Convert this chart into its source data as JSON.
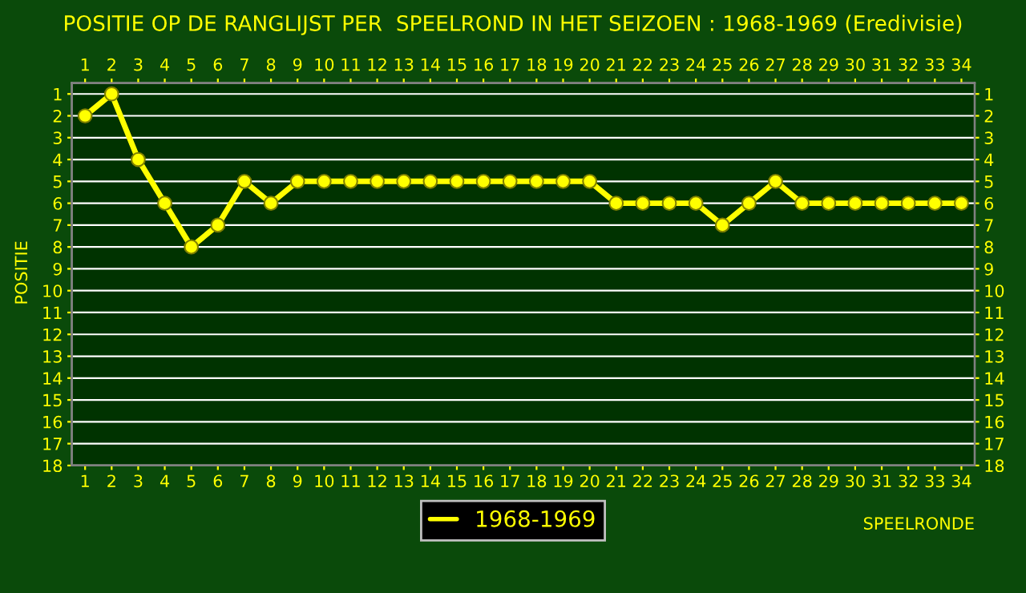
{
  "chart_data": {
    "type": "line",
    "title": "POSITIE OP DE RANGLIJST PER  SPEELROND IN HET SEIZOEN : 1968-1969 (Eredivisie)",
    "xlabel": "SPEELRONDE",
    "ylabel": "POSITIE",
    "x": [
      1,
      2,
      3,
      4,
      5,
      6,
      7,
      8,
      9,
      10,
      11,
      12,
      13,
      14,
      15,
      16,
      17,
      18,
      19,
      20,
      21,
      22,
      23,
      24,
      25,
      26,
      27,
      28,
      29,
      30,
      31,
      32,
      33,
      34
    ],
    "series": [
      {
        "name": "1968-1969",
        "color": "#ffff00",
        "values": [
          2,
          1,
          4,
          6,
          8,
          7,
          5,
          6,
          5,
          5,
          5,
          5,
          5,
          5,
          5,
          5,
          5,
          5,
          5,
          5,
          6,
          6,
          6,
          6,
          7,
          6,
          5,
          6,
          6,
          6,
          6,
          6,
          6,
          6
        ]
      }
    ],
    "xlim": [
      0.5,
      34.5
    ],
    "xticks": [
      1,
      2,
      3,
      4,
      5,
      6,
      7,
      8,
      9,
      10,
      11,
      12,
      13,
      14,
      15,
      16,
      17,
      18,
      19,
      20,
      21,
      22,
      23,
      24,
      25,
      26,
      27,
      28,
      29,
      30,
      31,
      32,
      33,
      34
    ],
    "x2lim": [
      0.5,
      34.5
    ],
    "x2ticks": [
      1,
      2,
      3,
      4,
      5,
      6,
      7,
      8,
      9,
      10,
      11,
      12,
      13,
      14,
      15,
      16,
      17,
      18,
      19,
      20,
      21,
      22,
      23,
      24,
      25,
      26,
      27,
      28,
      29,
      30,
      31,
      32,
      33,
      34
    ],
    "ylim": [
      18,
      0.5
    ],
    "yticks": [
      1,
      2,
      3,
      4,
      5,
      6,
      7,
      8,
      9,
      10,
      11,
      12,
      13,
      14,
      15,
      16,
      17,
      18
    ],
    "y2lim": [
      18,
      0.5
    ],
    "y2ticks": [
      1,
      2,
      3,
      4,
      5,
      6,
      7,
      8,
      9,
      10,
      11,
      12,
      13,
      14,
      15,
      16,
      17,
      18
    ],
    "grid": "y",
    "legend": "bottom",
    "marker": "circle",
    "line_style": "solid"
  }
}
